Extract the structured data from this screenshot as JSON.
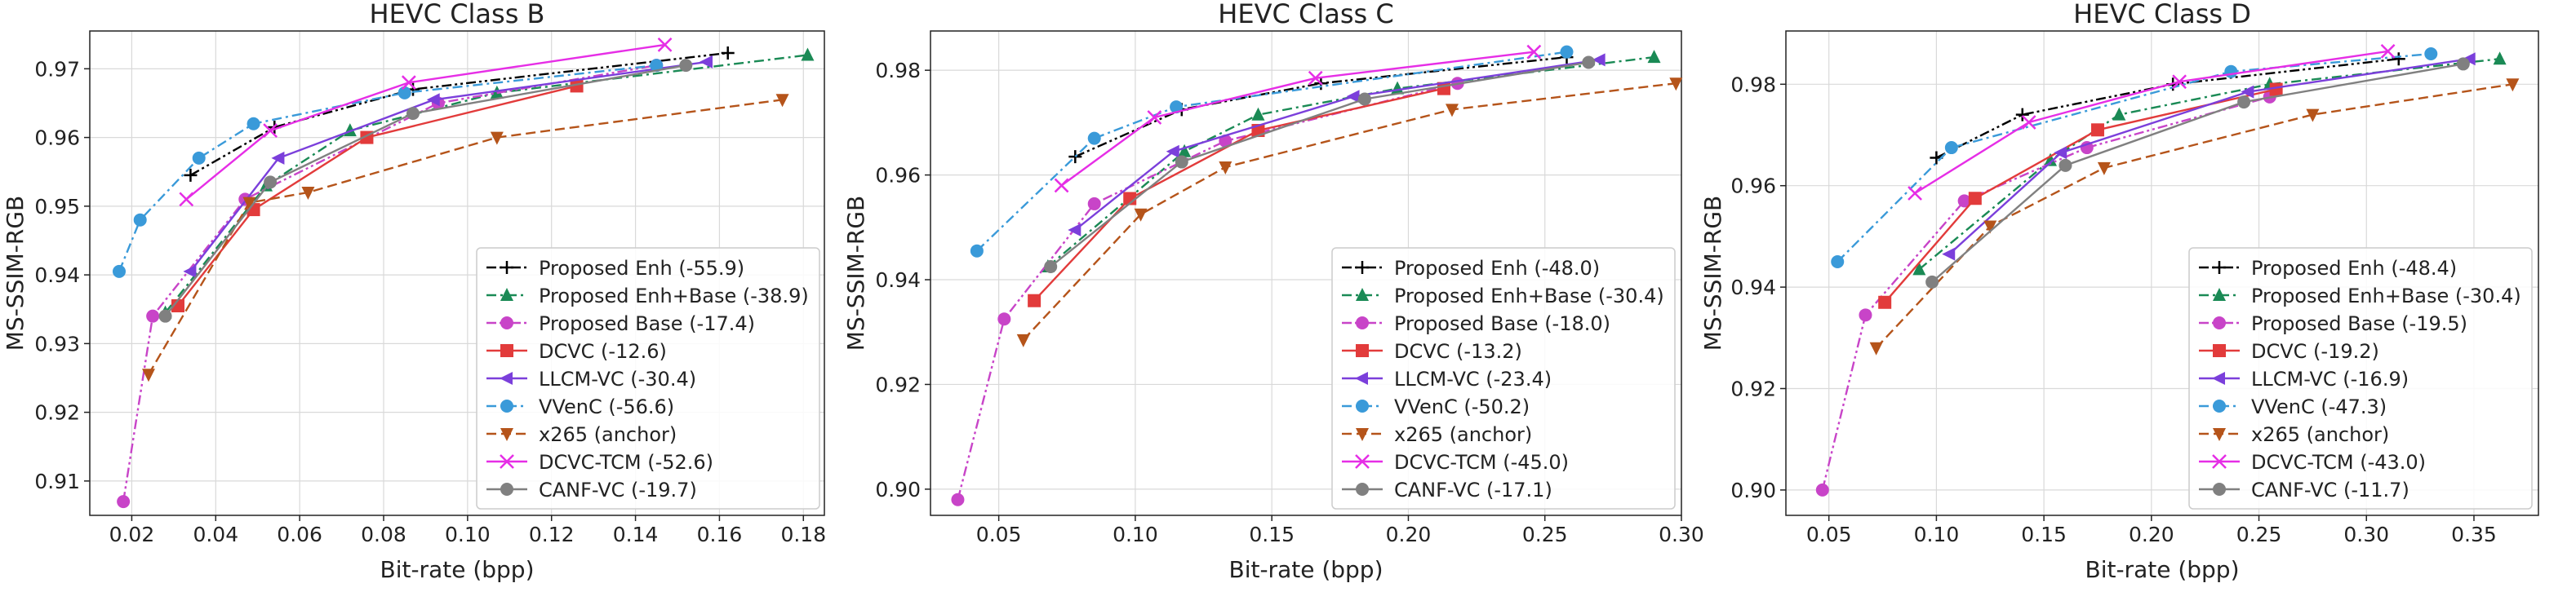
{
  "chart_data": [
    {
      "type": "line",
      "title": "HEVC Class B",
      "xlabel": "Bit-rate (bpp)",
      "ylabel": "MS-SSIM-RGB",
      "xlim": [
        0.01,
        0.185
      ],
      "ylim": [
        0.905,
        0.9755
      ],
      "xticks": [
        0.02,
        0.04,
        0.06,
        0.08,
        0.1,
        0.12,
        0.14,
        0.16,
        0.18
      ],
      "xtick_labels": [
        "0.02",
        "0.04",
        "0.06",
        "0.08",
        "0.10",
        "0.12",
        "0.14",
        "0.16",
        "0.18"
      ],
      "yticks": [
        0.91,
        0.92,
        0.93,
        0.94,
        0.95,
        0.96,
        0.97
      ],
      "ytick_labels": [
        "0.91",
        "0.92",
        "0.93",
        "0.94",
        "0.95",
        "0.96",
        "0.97"
      ],
      "legend_position": "lower-right",
      "series": [
        {
          "key": "proposed-enh",
          "name": "Proposed Enh (-55.9)",
          "color": "#000000",
          "dash": "dashdotdot",
          "marker": "plus",
          "x": [
            0.034,
            0.054,
            0.087,
            0.162
          ],
          "y": [
            0.9545,
            0.9615,
            0.967,
            0.9723
          ]
        },
        {
          "key": "proposed-enh-base",
          "name": "Proposed Enh+Base (-38.9)",
          "color": "#1a8a55",
          "dash": "dashdot",
          "marker": "triangle-up",
          "x": [
            0.028,
            0.052,
            0.072,
            0.107,
            0.181
          ],
          "y": [
            0.9345,
            0.953,
            0.961,
            0.9665,
            0.972
          ]
        },
        {
          "key": "proposed-base",
          "name": "Proposed Base (-17.4)",
          "color": "#c844c8",
          "dash": "dashdotdot",
          "marker": "circle",
          "x": [
            0.018,
            0.025,
            0.047,
            0.093,
            0.145
          ],
          "y": [
            0.907,
            0.934,
            0.951,
            0.965,
            0.9705
          ]
        },
        {
          "key": "dcvc",
          "name": "DCVC (-12.6)",
          "color": "#e23b3b",
          "dash": "solid",
          "marker": "square",
          "x": [
            0.031,
            0.049,
            0.076,
            0.126
          ],
          "y": [
            0.9355,
            0.9495,
            0.96,
            0.9675
          ]
        },
        {
          "key": "llcm-vc",
          "name": "LLCM-VC (-30.4)",
          "color": "#7b3fdb",
          "dash": "solid",
          "marker": "triangle-left",
          "x": [
            0.034,
            0.055,
            0.092,
            0.157
          ],
          "y": [
            0.9405,
            0.957,
            0.9655,
            0.971
          ]
        },
        {
          "key": "vvenc",
          "name": "VVenC (-56.6)",
          "color": "#3a9ad9",
          "dash": "dashdot",
          "marker": "circle",
          "x": [
            0.017,
            0.022,
            0.036,
            0.049,
            0.085,
            0.145
          ],
          "y": [
            0.9405,
            0.948,
            0.957,
            0.962,
            0.9665,
            0.9705
          ]
        },
        {
          "key": "x265",
          "name": "x265 (anchor)",
          "color": "#b5541a",
          "dash": "dashed",
          "marker": "triangle-down",
          "x": [
            0.024,
            0.048,
            0.062,
            0.107,
            0.175
          ],
          "y": [
            0.9255,
            0.9505,
            0.952,
            0.96,
            0.9655
          ]
        },
        {
          "key": "dcvc-tcm",
          "name": "DCVC-TCM (-52.6)",
          "color": "#e62ee6",
          "dash": "solid",
          "marker": "x",
          "x": [
            0.033,
            0.053,
            0.086,
            0.147
          ],
          "y": [
            0.951,
            0.961,
            0.968,
            0.9735
          ]
        },
        {
          "key": "canf-vc",
          "name": "CANF-VC (-19.7)",
          "color": "#808080",
          "dash": "solid",
          "marker": "circle",
          "x": [
            0.028,
            0.053,
            0.087,
            0.152
          ],
          "y": [
            0.934,
            0.9535,
            0.9635,
            0.9705
          ]
        }
      ]
    },
    {
      "type": "line",
      "title": "HEVC Class C",
      "xlabel": "Bit-rate (bpp)",
      "ylabel": "MS-SSIM-RGB",
      "xlim": [
        0.025,
        0.3
      ],
      "ylim": [
        0.895,
        0.9875
      ],
      "xticks": [
        0.05,
        0.1,
        0.15,
        0.2,
        0.25,
        0.3
      ],
      "xtick_labels": [
        "0.05",
        "0.10",
        "0.15",
        "0.20",
        "0.25",
        "0.30"
      ],
      "yticks": [
        0.9,
        0.92,
        0.94,
        0.96,
        0.98
      ],
      "ytick_labels": [
        "0.90",
        "0.92",
        "0.94",
        "0.96",
        "0.98"
      ],
      "legend_position": "lower-right",
      "series": [
        {
          "key": "proposed-enh",
          "name": "Proposed Enh (-48.0)",
          "color": "#000000",
          "dash": "dashdotdot",
          "marker": "plus",
          "x": [
            0.078,
            0.117,
            0.168,
            0.258
          ],
          "y": [
            0.9635,
            0.9725,
            0.9775,
            0.9825
          ]
        },
        {
          "key": "proposed-enh-base",
          "name": "Proposed Enh+Base (-30.4)",
          "color": "#1a8a55",
          "dash": "dashdot",
          "marker": "triangle-up",
          "x": [
            0.068,
            0.118,
            0.145,
            0.196,
            0.29
          ],
          "y": [
            0.9425,
            0.9645,
            0.9715,
            0.9765,
            0.9825
          ]
        },
        {
          "key": "proposed-base",
          "name": "Proposed Base (-18.0)",
          "color": "#c844c8",
          "dash": "dashdotdot",
          "marker": "circle",
          "x": [
            0.035,
            0.052,
            0.085,
            0.133,
            0.218
          ],
          "y": [
            0.898,
            0.9325,
            0.9545,
            0.9665,
            0.9775
          ]
        },
        {
          "key": "dcvc",
          "name": "DCVC (-13.2)",
          "color": "#e23b3b",
          "dash": "solid",
          "marker": "square",
          "x": [
            0.063,
            0.098,
            0.145,
            0.213
          ],
          "y": [
            0.936,
            0.9555,
            0.9685,
            0.9765
          ]
        },
        {
          "key": "llcm-vc",
          "name": "LLCM-VC (-23.4)",
          "color": "#7b3fdb",
          "dash": "solid",
          "marker": "triangle-left",
          "x": [
            0.078,
            0.114,
            0.18,
            0.27
          ],
          "y": [
            0.9495,
            0.9645,
            0.975,
            0.982
          ]
        },
        {
          "key": "vvenc",
          "name": "VVenC (-50.2)",
          "color": "#3a9ad9",
          "dash": "dashdot",
          "marker": "circle",
          "x": [
            0.042,
            0.085,
            0.115,
            0.258
          ],
          "y": [
            0.9455,
            0.967,
            0.973,
            0.9835
          ]
        },
        {
          "key": "x265",
          "name": "x265 (anchor)",
          "color": "#b5541a",
          "dash": "dashed",
          "marker": "triangle-down",
          "x": [
            0.059,
            0.102,
            0.133,
            0.216,
            0.298
          ],
          "y": [
            0.9285,
            0.9525,
            0.9615,
            0.9725,
            0.9775
          ]
        },
        {
          "key": "dcvc-tcm",
          "name": "DCVC-TCM (-45.0)",
          "color": "#e62ee6",
          "dash": "solid",
          "marker": "x",
          "x": [
            0.073,
            0.107,
            0.166,
            0.246
          ],
          "y": [
            0.958,
            0.971,
            0.9785,
            0.9835
          ]
        },
        {
          "key": "canf-vc",
          "name": "CANF-VC (-17.1)",
          "color": "#808080",
          "dash": "solid",
          "marker": "circle",
          "x": [
            0.069,
            0.117,
            0.184,
            0.266
          ],
          "y": [
            0.9425,
            0.9625,
            0.9745,
            0.9815
          ]
        }
      ]
    },
    {
      "type": "line",
      "title": "HEVC Class D",
      "xlabel": "Bit-rate (bpp)",
      "ylabel": "MS-SSIM-RGB",
      "xlim": [
        0.03,
        0.38
      ],
      "ylim": [
        0.895,
        0.9905
      ],
      "xticks": [
        0.05,
        0.1,
        0.15,
        0.2,
        0.25,
        0.3,
        0.35
      ],
      "xtick_labels": [
        "0.05",
        "0.10",
        "0.15",
        "0.20",
        "0.25",
        "0.30",
        "0.35"
      ],
      "yticks": [
        0.9,
        0.92,
        0.94,
        0.96,
        0.98
      ],
      "ytick_labels": [
        "0.90",
        "0.92",
        "0.94",
        "0.96",
        "0.98"
      ],
      "legend_position": "lower-right",
      "series": [
        {
          "key": "proposed-enh",
          "name": "Proposed Enh (-48.4)",
          "color": "#000000",
          "dash": "dashdotdot",
          "marker": "plus",
          "x": [
            0.1,
            0.14,
            0.21,
            0.315
          ],
          "y": [
            0.9655,
            0.974,
            0.98,
            0.985
          ]
        },
        {
          "key": "proposed-enh-base",
          "name": "Proposed Enh+Base (-30.4)",
          "color": "#1a8a55",
          "dash": "dashdot",
          "marker": "triangle-up",
          "x": [
            0.092,
            0.153,
            0.185,
            0.255,
            0.362
          ],
          "y": [
            0.9435,
            0.965,
            0.974,
            0.98,
            0.985
          ]
        },
        {
          "key": "proposed-base",
          "name": "Proposed Base (-19.5)",
          "color": "#c844c8",
          "dash": "dashdotdot",
          "marker": "circle",
          "x": [
            0.047,
            0.067,
            0.113,
            0.17,
            0.255
          ],
          "y": [
            0.9,
            0.9345,
            0.957,
            0.9675,
            0.9775
          ]
        },
        {
          "key": "dcvc",
          "name": "DCVC (-19.2)",
          "color": "#e23b3b",
          "dash": "solid",
          "marker": "square",
          "x": [
            0.076,
            0.118,
            0.175,
            0.258
          ],
          "y": [
            0.937,
            0.9575,
            0.971,
            0.979
          ]
        },
        {
          "key": "llcm-vc",
          "name": "LLCM-VC (-16.9)",
          "color": "#7b3fdb",
          "dash": "solid",
          "marker": "triangle-left",
          "x": [
            0.106,
            0.158,
            0.245,
            0.348
          ],
          "y": [
            0.9465,
            0.9665,
            0.9785,
            0.985
          ]
        },
        {
          "key": "vvenc",
          "name": "VVenC (-47.3)",
          "color": "#3a9ad9",
          "dash": "dashdot",
          "marker": "circle",
          "x": [
            0.054,
            0.107,
            0.237,
            0.33
          ],
          "y": [
            0.945,
            0.9675,
            0.9825,
            0.986
          ]
        },
        {
          "key": "x265",
          "name": "x265 (anchor)",
          "color": "#b5541a",
          "dash": "dashed",
          "marker": "triangle-down",
          "x": [
            0.072,
            0.125,
            0.178,
            0.275,
            0.368
          ],
          "y": [
            0.928,
            0.952,
            0.9635,
            0.974,
            0.98
          ]
        },
        {
          "key": "dcvc-tcm",
          "name": "DCVC-TCM (-43.0)",
          "color": "#e62ee6",
          "dash": "solid",
          "marker": "x",
          "x": [
            0.09,
            0.143,
            0.213,
            0.31
          ],
          "y": [
            0.9585,
            0.9725,
            0.9805,
            0.9865
          ]
        },
        {
          "key": "canf-vc",
          "name": "CANF-VC (-11.7)",
          "color": "#808080",
          "dash": "solid",
          "marker": "circle",
          "x": [
            0.098,
            0.16,
            0.243,
            0.345
          ],
          "y": [
            0.941,
            0.964,
            0.9765,
            0.984
          ]
        }
      ]
    }
  ]
}
